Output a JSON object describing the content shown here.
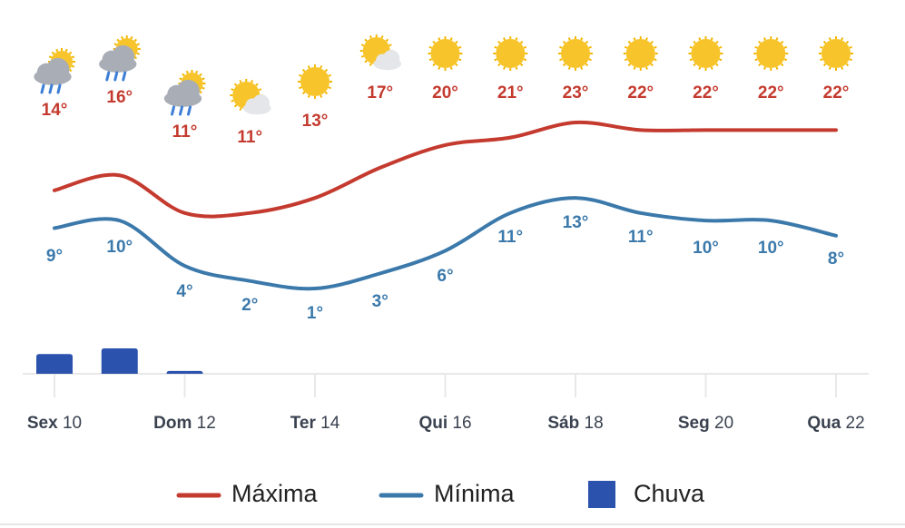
{
  "chart_data": {
    "type": "line",
    "categories": [
      "Sex 10",
      null,
      "Dom 12",
      null,
      "Ter 14",
      null,
      "Qui 16",
      null,
      "Sáb 18",
      null,
      "Seg 20",
      null,
      "Qua 22"
    ],
    "series": [
      {
        "name": "Máxima",
        "color": "#c43a2e",
        "values": [
          14,
          16,
          11,
          11,
          13,
          17,
          20,
          21,
          23,
          22,
          22,
          22,
          22
        ],
        "value_labels": [
          "14°",
          "16°",
          "11°",
          "11°",
          "13°",
          "17°",
          "20°",
          "21°",
          "23°",
          "22°",
          "22°",
          "22°",
          "22°"
        ]
      },
      {
        "name": "Mínima",
        "color": "#3b79ab",
        "values": [
          9,
          10,
          4,
          2,
          1,
          3,
          6,
          11,
          13,
          11,
          10,
          10,
          8
        ],
        "value_labels": [
          "9°",
          "10°",
          "4°",
          "2°",
          "1°",
          "3°",
          "6°",
          "11°",
          "13°",
          "11°",
          "10°",
          "10°",
          "8°"
        ]
      },
      {
        "name": "Chuva",
        "type": "bar",
        "color": "#2b52ad",
        "values": [
          7,
          9,
          1,
          null,
          null,
          null,
          null,
          null,
          null,
          null,
          null,
          null,
          null
        ]
      }
    ]
  }
}
